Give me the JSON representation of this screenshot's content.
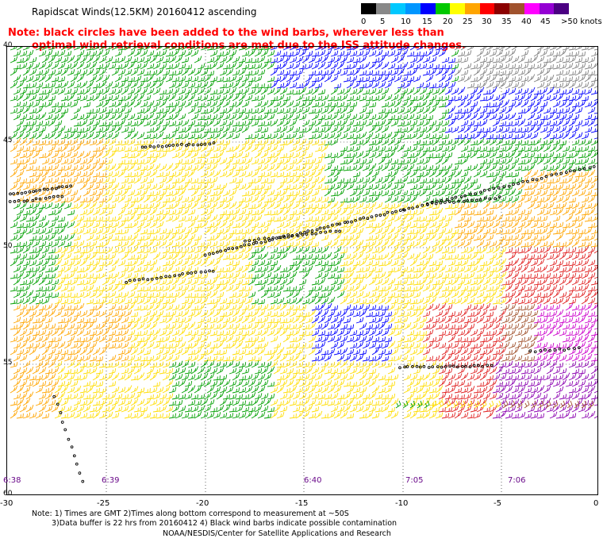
{
  "title": "Rapidscat Winds(12.5KM) 20160412 ascending",
  "note_lines": [
    "Note: black circles have been added to the wind barbs, wherever less than",
    "      optimal wind retrieval conditions are met due to the ISS attitude changes."
  ],
  "legend": {
    "labels": [
      "0",
      "5",
      "10",
      "15",
      "20",
      "25",
      "30",
      "35",
      "40",
      "45",
      ">50 knots"
    ],
    "colors": [
      "#000000",
      "#888888",
      "#00c8ff",
      "#0096ff",
      "#0000ff",
      "#00c800",
      "#ffff00",
      "#ffa500",
      "#ff0000",
      "#8b0000",
      "#a0522d",
      "#ff00ff",
      "#9400d3",
      "#4b0082"
    ]
  },
  "map": {
    "lat_labels": [
      "40",
      "45",
      "50",
      "55",
      "60"
    ],
    "lon_labels": [
      "-30",
      "-25",
      "-20",
      "-15",
      "-10",
      "-5",
      "0"
    ],
    "time_labels": [
      "6:38",
      "6:39",
      "6:40",
      "7:05",
      "7:06"
    ],
    "barb_colors": {
      "calm_gray": "#808080",
      "blue": "#0000ff",
      "green": "#00a000",
      "yellow": "#ffdd00",
      "orange": "#ffa500",
      "red": "#e02020",
      "brown": "#a0522d",
      "magenta": "#cc00cc",
      "purple": "#8b00b0"
    }
  },
  "footer": {
    "line1": "Note: 1) Times are GMT 2)Times along bottom correspond to measurement at ~50S",
    "line2": "3)Data buffer is 22 hrs from 20160412 4) Black wind barbs indicate possible contamination",
    "line3": "NOAA/NESDIS/Center for Satellite Applications and Research"
  }
}
